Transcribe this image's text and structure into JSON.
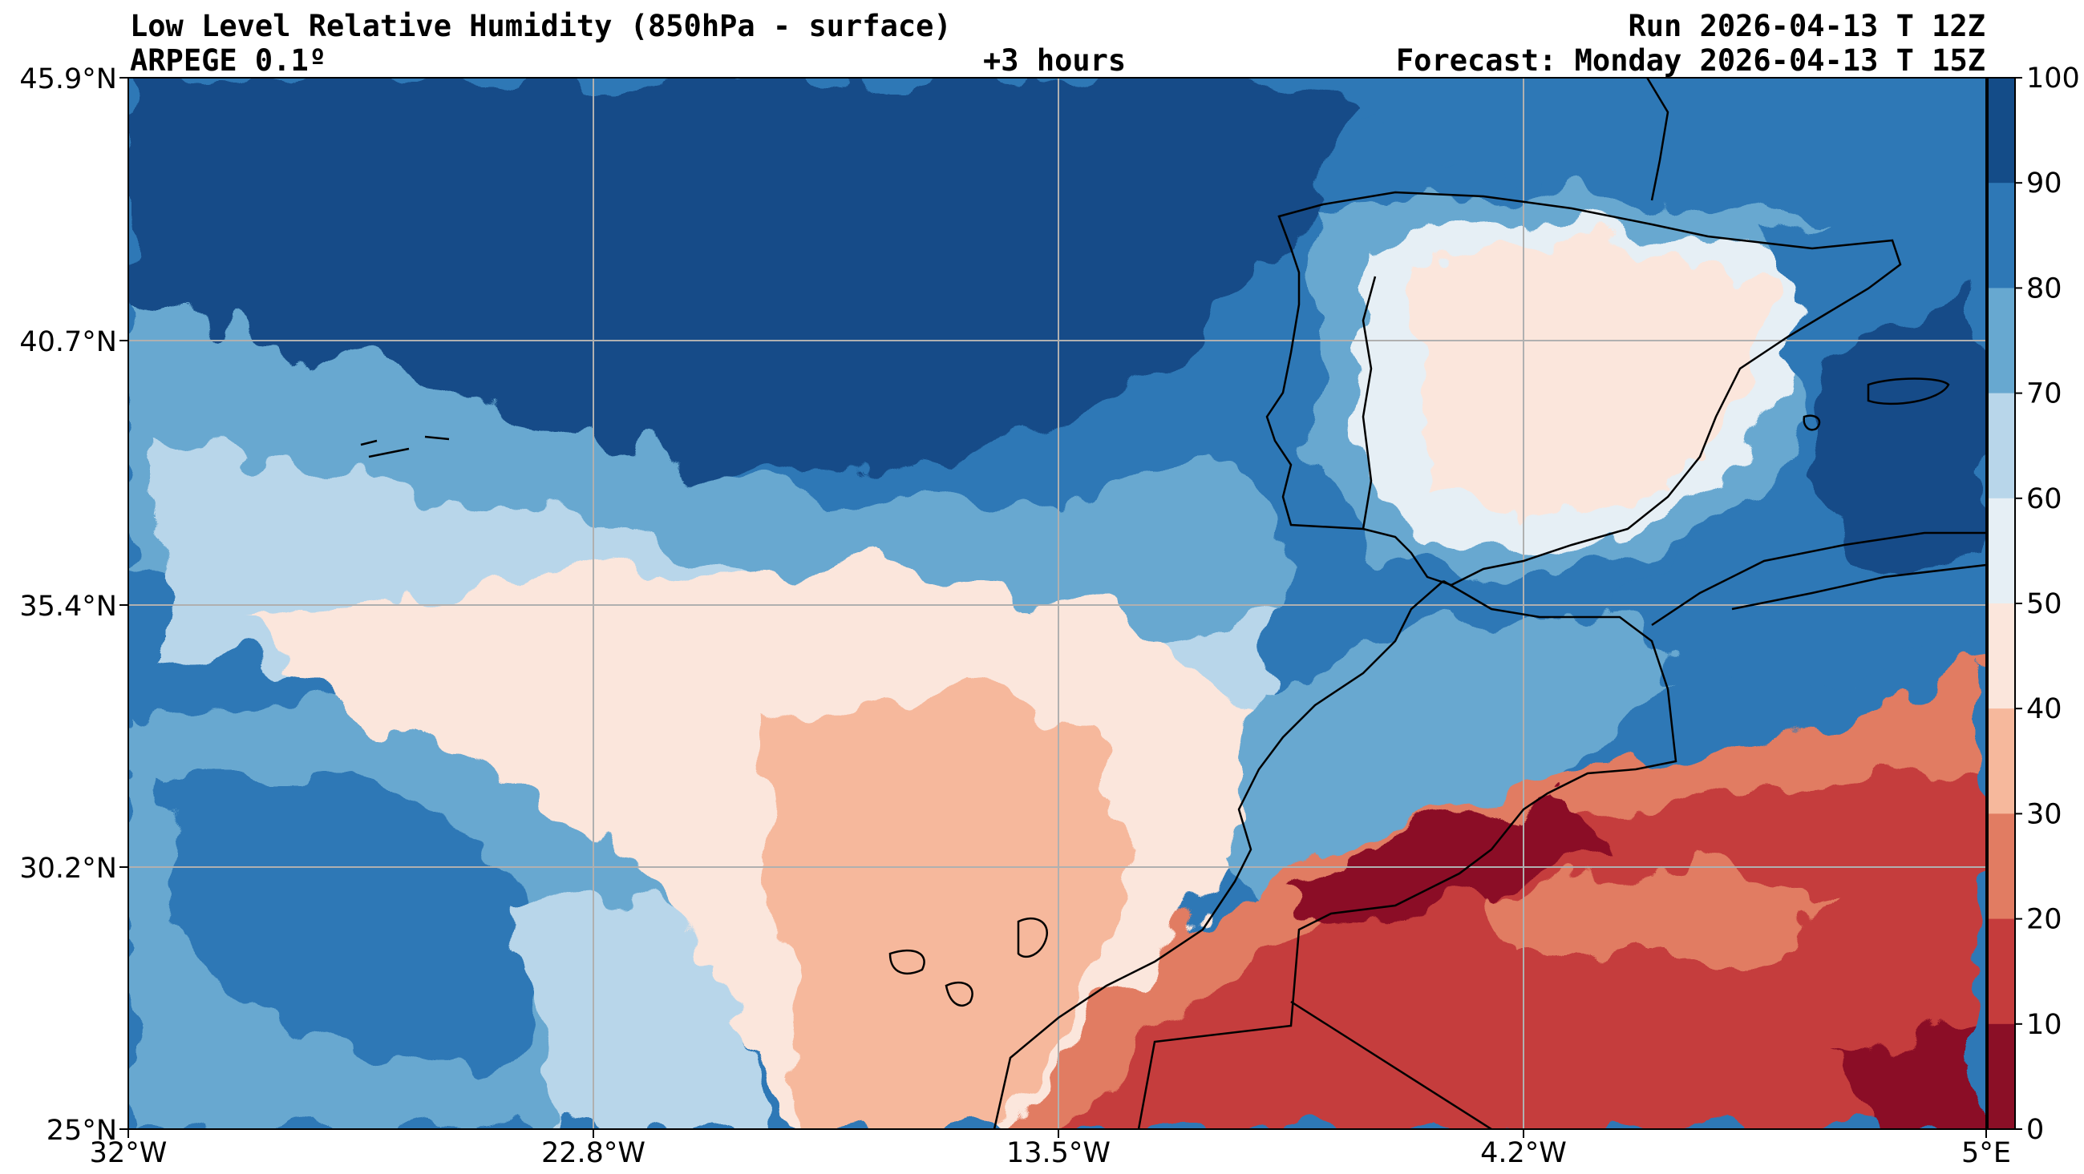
{
  "header": {
    "title_line1": "Low Level Relative Humidity (850hPa - surface)",
    "title_line2": "ARPEGE 0.1º",
    "lead_time": "+3 hours",
    "run": "Run 2026-04-13 T 12Z",
    "forecast": "Forecast: Monday 2026-04-13 T 15Z"
  },
  "axes": {
    "lon_ticks": [
      "32°W",
      "22.8°W",
      "13.5°W",
      "4.2°W",
      "5°E"
    ],
    "lat_ticks": [
      "45.9°N",
      "40.7°N",
      "35.4°N",
      "30.2°N",
      "25°N"
    ]
  },
  "colorbar": {
    "ticks": [
      "100",
      "90",
      "80",
      "70",
      "60",
      "50",
      "40",
      "30",
      "20",
      "10",
      "0"
    ],
    "colors": [
      "#144c88",
      "#2e78b6",
      "#67a8d0",
      "#b8d6ea",
      "#e6eff5",
      "#fbe6dc",
      "#f6b89c",
      "#e17c62",
      "#c53c3c",
      "#8b0f26"
    ]
  }
}
